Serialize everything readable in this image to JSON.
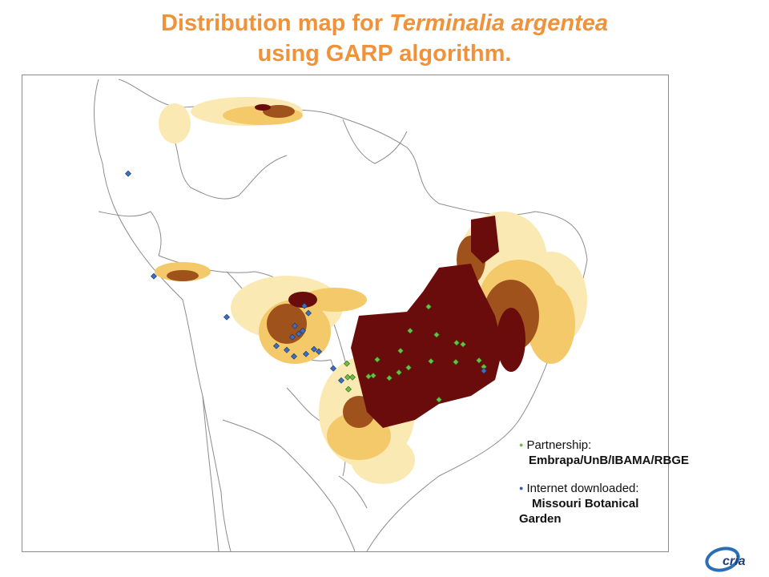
{
  "title": {
    "prefix": "Distribution map for ",
    "species": "Terminalia argentea",
    "line2": "using GARP algorithm."
  },
  "legend": {
    "items": [
      {
        "label": "Partnership:",
        "source": "Embrapa/UnB/IBAMA/RBGE",
        "color": "#6abf45"
      },
      {
        "label": "Internet downloaded:",
        "source": "Missouri Botanical Garden",
        "color": "#2d5fa8"
      }
    ]
  },
  "logo": {
    "text": "cria"
  },
  "colors": {
    "prediction_high": "#6b0c0c",
    "prediction_mid": "#a0521c",
    "prediction_low": "#f3c96a",
    "prediction_faint": "#fbe9b4",
    "partnership_point": "#6abf45",
    "internet_point": "#2d5fa8"
  }
}
